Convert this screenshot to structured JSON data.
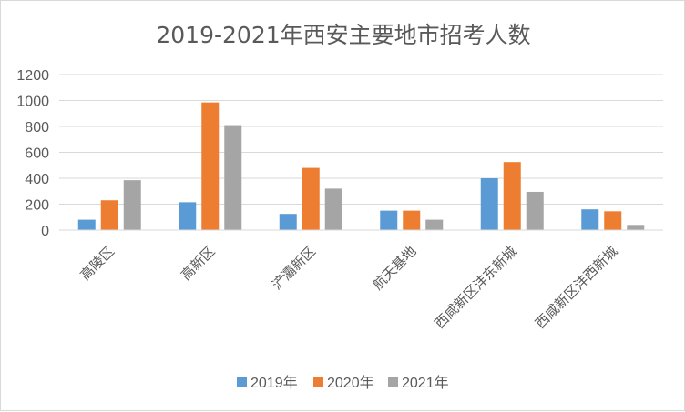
{
  "chart_data": {
    "type": "bar",
    "title": "2019-2021年西安主要地市招考人数",
    "categories": [
      "高陵区",
      "高新区",
      "浐灞新区",
      "航天基地",
      "西咸新区沣东新城",
      "西咸新区沣西新城"
    ],
    "series": [
      {
        "name": "2019年",
        "color": "#5b9bd5",
        "values": [
          80,
          215,
          125,
          150,
          400,
          160
        ]
      },
      {
        "name": "2020年",
        "color": "#ed7d31",
        "values": [
          230,
          985,
          480,
          150,
          525,
          145
        ]
      },
      {
        "name": "2021年",
        "color": "#a5a5a5",
        "values": [
          385,
          810,
          320,
          80,
          295,
          40
        ]
      }
    ],
    "yticks": [
      "0",
      "200",
      "400",
      "600",
      "800",
      "1000",
      "1200"
    ],
    "ylim": [
      0,
      1200
    ],
    "grid": true,
    "legend_position": "bottom",
    "xlabel": "",
    "ylabel": ""
  }
}
